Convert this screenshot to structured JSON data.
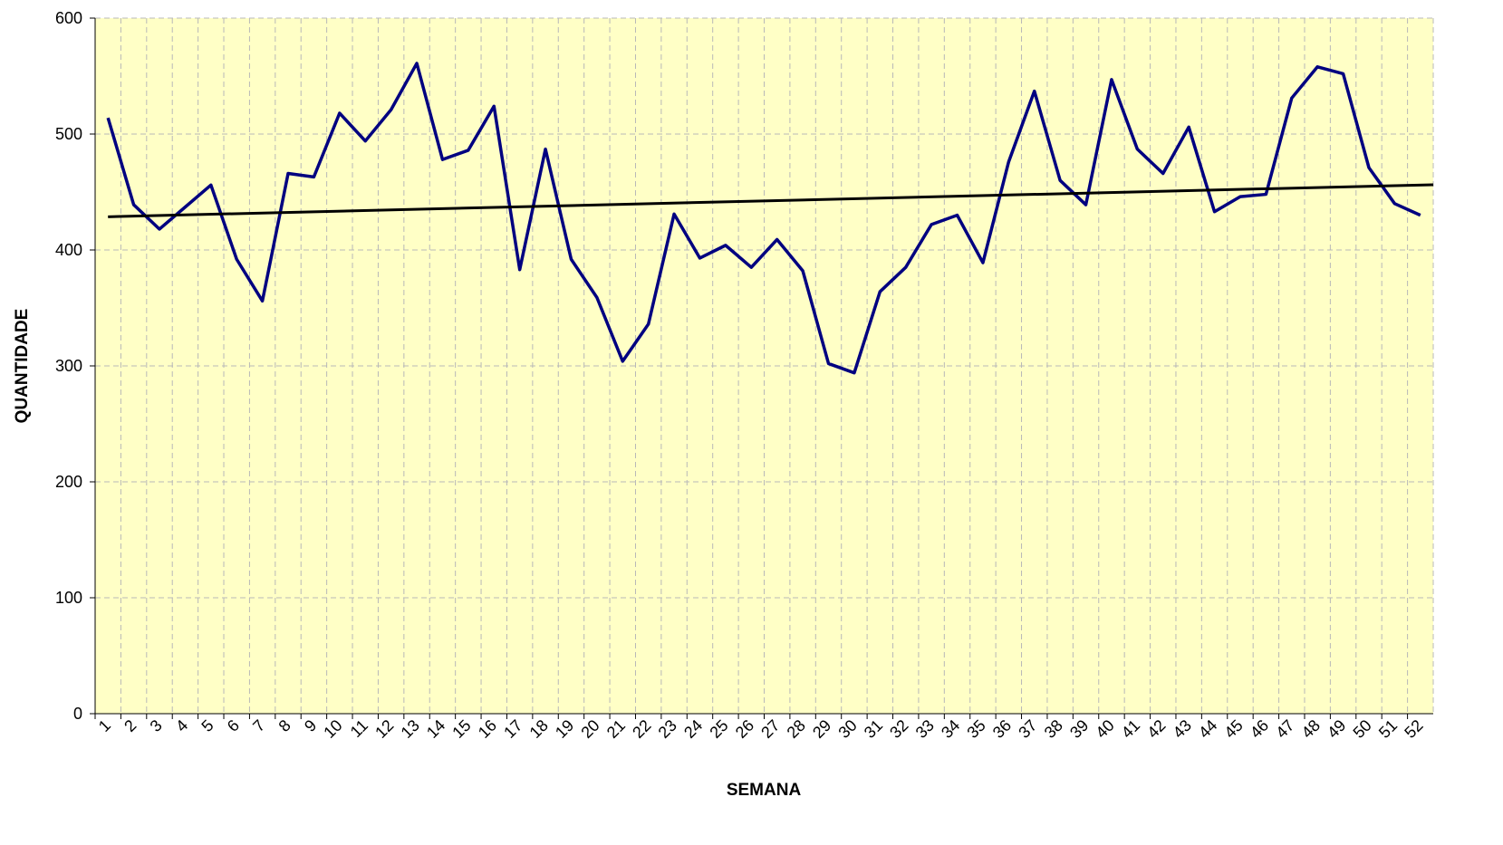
{
  "chart_data": {
    "type": "line",
    "xlabel": "SEMANA",
    "ylabel": "QUANTIDADE",
    "categories": [
      "1",
      "2",
      "3",
      "4",
      "5",
      "6",
      "7",
      "8",
      "9",
      "10",
      "11",
      "12",
      "13",
      "14",
      "15",
      "16",
      "17",
      "18",
      "19",
      "20",
      "21",
      "22",
      "23",
      "24",
      "25",
      "26",
      "27",
      "28",
      "29",
      "30",
      "31",
      "32",
      "33",
      "34",
      "35",
      "36",
      "37",
      "38",
      "39",
      "40",
      "41",
      "42",
      "43",
      "44",
      "45",
      "46",
      "47",
      "48",
      "49",
      "50",
      "51",
      "52"
    ],
    "series": [
      {
        "color": "#000080",
        "values": [
          514,
          439,
          418,
          437,
          456,
          392,
          356,
          466,
          463,
          518,
          494,
          521,
          561,
          478,
          486,
          524,
          383,
          487,
          392,
          359,
          304,
          336,
          431,
          393,
          404,
          385,
          409,
          382,
          302,
          294,
          364,
          385,
          422,
          430,
          389,
          476,
          537,
          460,
          439,
          547,
          487,
          466,
          506,
          433,
          446,
          448,
          531,
          558,
          552,
          471,
          440,
          430
        ]
      }
    ],
    "trendline": {
      "type": "linear",
      "color": "#000000"
    },
    "ylim": [
      0,
      600
    ],
    "yticks": [
      0,
      100,
      200,
      300,
      400,
      500,
      600
    ],
    "grid": true,
    "background": "#ffffc6"
  }
}
